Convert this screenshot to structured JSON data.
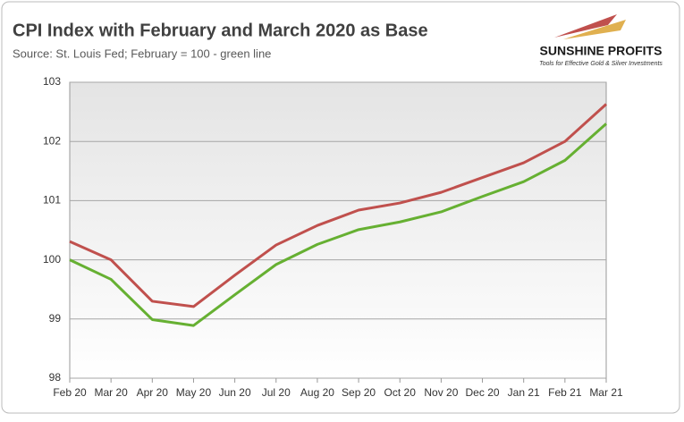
{
  "chart_data": {
    "type": "line",
    "title": "CPI Index with February and March 2020 as Base",
    "subtitle": "Source: St. Louis Fed; February = 100 - green line",
    "categories": [
      "Feb 20",
      "Mar 20",
      "Apr 20",
      "May 20",
      "Jun 20",
      "Jul 20",
      "Aug 20",
      "Sep 20",
      "Oct 20",
      "Nov 20",
      "Dec 20",
      "Jan 21",
      "Feb 21",
      "Mar 21"
    ],
    "series": [
      {
        "color": "#c0504d",
        "values": [
          100.31,
          100,
          99.3,
          99.21,
          99.74,
          100.25,
          100.58,
          100.84,
          100.96,
          101.14,
          101.39,
          101.64,
          102.0,
          102.63
        ]
      },
      {
        "color": "#66b032",
        "values": [
          100,
          99.67,
          98.99,
          98.89,
          99.41,
          99.92,
          100.26,
          100.51,
          100.64,
          100.81,
          101.07,
          101.32,
          101.68,
          102.3
        ]
      }
    ],
    "ylim": [
      98,
      103
    ],
    "yticks": [
      98,
      99,
      100,
      101,
      102,
      103
    ],
    "grid": true
  },
  "logo": {
    "name": "SUNSHINE PROFITS",
    "tagline": "Tools for Effective Gold & Silver Investments"
  }
}
